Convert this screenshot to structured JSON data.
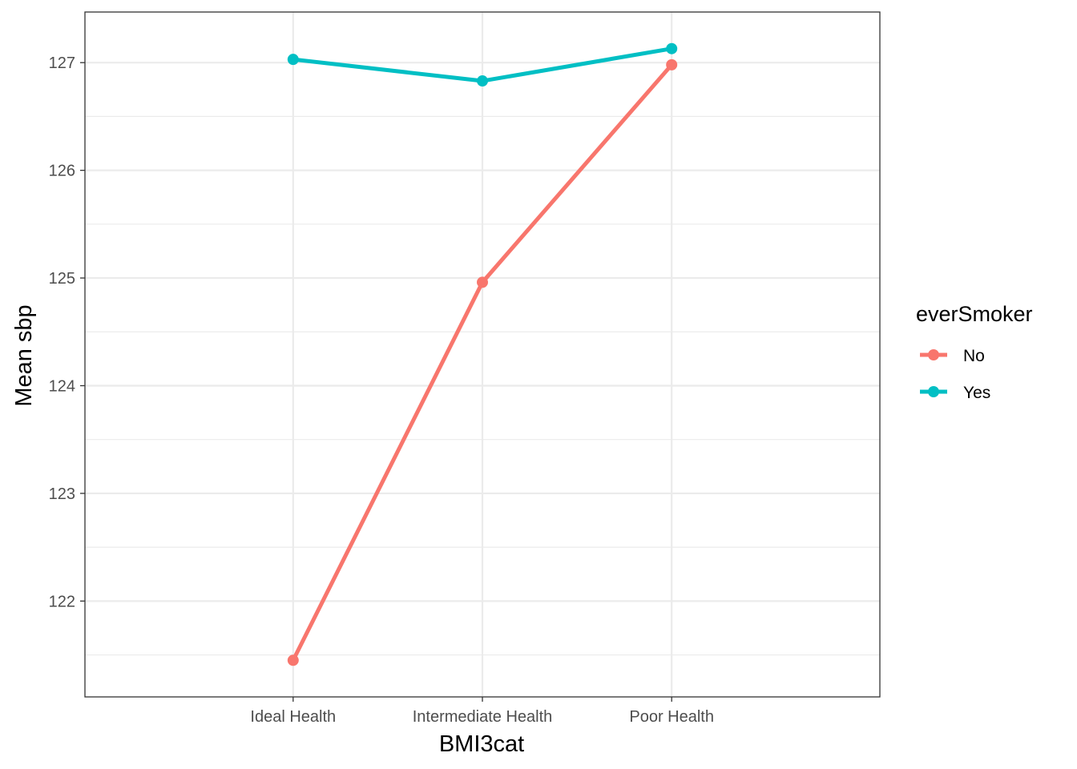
{
  "chart_data": {
    "type": "line",
    "categories": [
      "Ideal Health",
      "Intermediate Health",
      "Poor Health"
    ],
    "series": [
      {
        "name": "No",
        "color": "#F8766D",
        "values": [
          121.45,
          124.96,
          126.98
        ]
      },
      {
        "name": "Yes",
        "color": "#00BFC4",
        "values": [
          127.03,
          126.83,
          127.13
        ]
      }
    ],
    "xlabel": "BMI3cat",
    "ylabel": "Mean sbp",
    "legend_title": "everSmoker",
    "legend_position": "right",
    "yticks": [
      122,
      123,
      124,
      125,
      126,
      127
    ],
    "ylim": [
      121.11,
      127.47
    ],
    "grid": true,
    "colors": {
      "panel_border": "#333333",
      "grid_major": "#EBEBEB",
      "grid_minor": "#EBEBEB"
    }
  }
}
